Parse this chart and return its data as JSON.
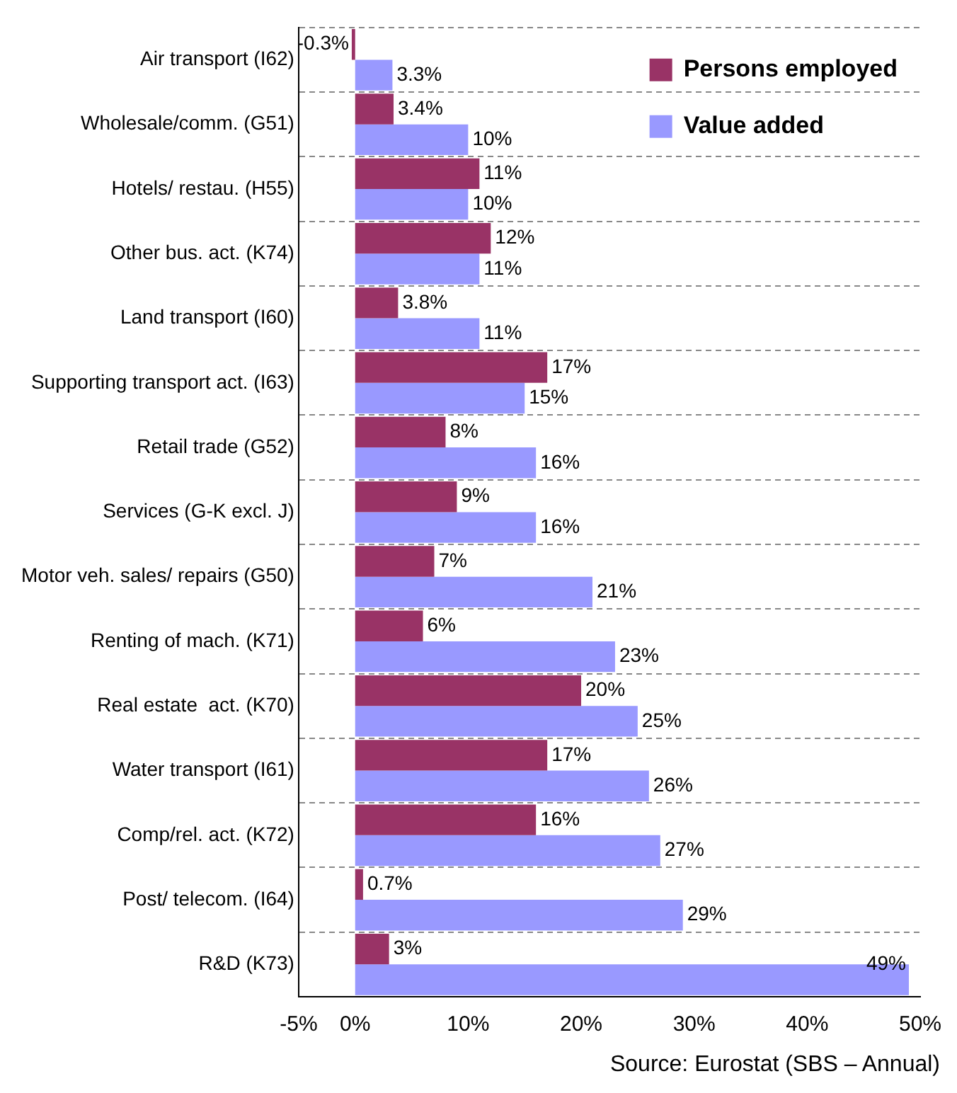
{
  "chart_data": {
    "type": "bar",
    "orientation": "horizontal",
    "categories": [
      "Air transport (I62)",
      "Wholesale/comm. (G51)",
      "Hotels/ restau. (H55)",
      "Other bus. act. (K74)",
      "Land transport (I60)",
      "Supporting transport act. (I63)",
      "Retail trade (G52)",
      "Services (G-K excl. J)",
      "Motor veh. sales/ repairs (G50)",
      "Renting of mach. (K71)",
      "Real estate  act. (K70)",
      "Water transport (I61)",
      "Comp/rel. act. (K72)",
      "Post/ telecom. (I64)",
      "R&D (K73)"
    ],
    "series": [
      {
        "name": "Persons employed",
        "color": "#993366",
        "values": [
          -0.3,
          3.4,
          11,
          12,
          3.8,
          17,
          8,
          9,
          7,
          6,
          20,
          17,
          16,
          0.7,
          3
        ],
        "value_labels": [
          "-0.3%",
          "3.4%",
          "11%",
          "12%",
          "3.8%",
          "17%",
          "8%",
          "9%",
          "7%",
          "6%",
          "20%",
          "17%",
          "16%",
          "0.7%",
          "3%"
        ]
      },
      {
        "name": "Value added",
        "color": "#9999ff",
        "values": [
          3.3,
          10,
          10,
          11,
          11,
          15,
          16,
          16,
          21,
          23,
          25,
          26,
          27,
          29,
          49
        ],
        "value_labels": [
          "3.3%",
          "10%",
          "10%",
          "11%",
          "11%",
          "15%",
          "16%",
          "16%",
          "21%",
          "23%",
          "25%",
          "26%",
          "27%",
          "29%",
          "49%"
        ]
      }
    ],
    "xlim": [
      -5,
      50
    ],
    "xticks": [
      {
        "value": -5,
        "label": "-5%"
      },
      {
        "value": 0,
        "label": "0%"
      },
      {
        "value": 10,
        "label": "10%"
      },
      {
        "value": 20,
        "label": "20%"
      },
      {
        "value": 30,
        "label": "30%"
      },
      {
        "value": 40,
        "label": "40%"
      },
      {
        "value": 50,
        "label": "50%"
      }
    ],
    "grid": "y",
    "legend": "top right",
    "annotations": [
      "Source: Eurostat (SBS – Annual)"
    ]
  }
}
